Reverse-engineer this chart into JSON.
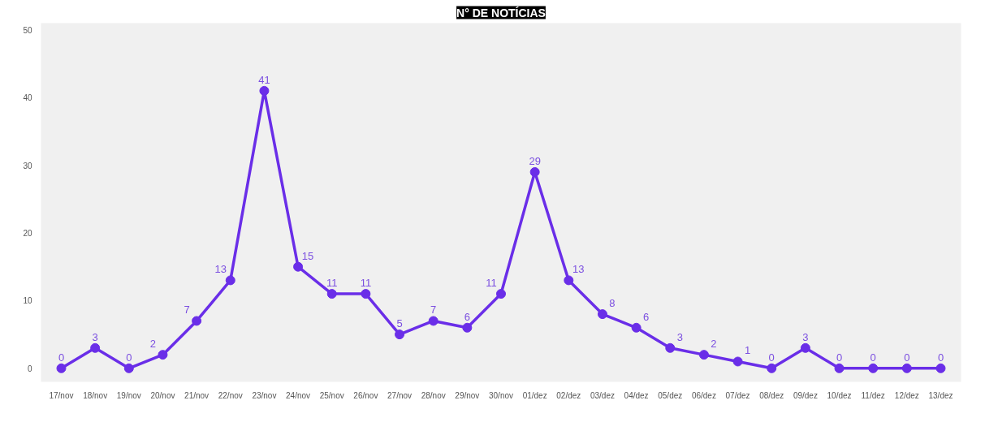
{
  "chart_data": {
    "type": "line",
    "title": "N° DE NOTÍCIAS",
    "categories": [
      "17/nov",
      "18/nov",
      "19/nov",
      "20/nov",
      "21/nov",
      "22/nov",
      "23/nov",
      "24/nov",
      "25/nov",
      "26/nov",
      "27/nov",
      "28/nov",
      "29/nov",
      "30/nov",
      "01/dez",
      "02/dez",
      "03/dez",
      "04/dez",
      "05/dez",
      "06/dez",
      "07/dez",
      "08/dez",
      "09/dez",
      "10/dez",
      "11/dez",
      "12/dez",
      "13/dez"
    ],
    "series": [
      {
        "color": "#6a2ee8",
        "values": [
          0,
          3,
          0,
          2,
          7,
          13,
          41,
          15,
          11,
          11,
          5,
          7,
          6,
          11,
          29,
          13,
          8,
          6,
          3,
          2,
          1,
          0,
          3,
          0,
          0,
          0,
          0
        ]
      }
    ],
    "ylim": [
      -2,
      51
    ],
    "yticks": [
      0,
      10,
      20,
      30,
      40,
      50
    ],
    "grid": false,
    "marker": "circle",
    "line_style": "solid",
    "data_labels": true
  }
}
